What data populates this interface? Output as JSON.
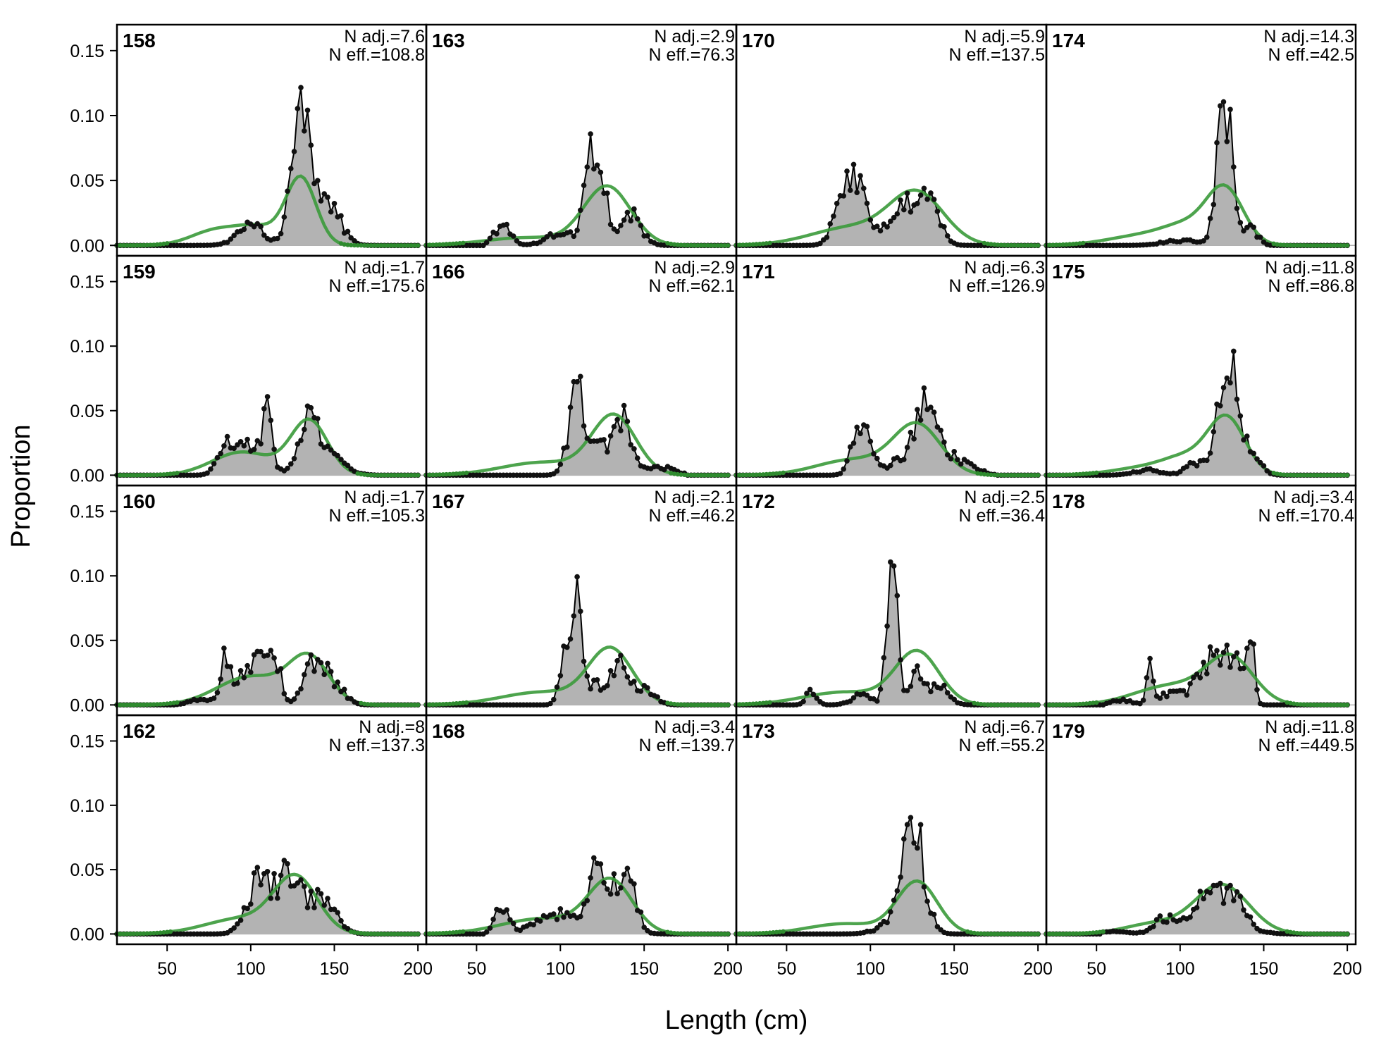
{
  "chart_data": {
    "type": "area",
    "xlabel": "Length (cm)",
    "ylabel": "Proportion",
    "xlim": [
      20,
      205
    ],
    "ylim": [
      -0.008,
      0.17
    ],
    "x_ticks": [
      "50",
      "100",
      "150",
      "200"
    ],
    "y_ticks": [
      "0.00",
      "0.05",
      "0.10",
      "0.15"
    ],
    "grid": false,
    "colors": {
      "observed_fill": "#b3b3b3",
      "observed_line": "#000000",
      "expected_line": "#3a9a3a",
      "zero_line": "#b0b0b0"
    },
    "panels": [
      {
        "label": "158",
        "n_adj": "N adj.=7.6",
        "n_eff": "N eff.=108.8",
        "seed": 158,
        "observed_peaks": [
          [
            127,
            0.058,
            4
          ],
          [
            132,
            0.05,
            2.5
          ],
          [
            131,
            0.03,
            6
          ],
          [
            140,
            0.03,
            6
          ],
          [
            150,
            0.02,
            6
          ],
          [
            100,
            0.015,
            8
          ]
        ],
        "expected": [
          [
            130,
            0.052,
            9
          ],
          [
            80,
            0.012,
            15
          ],
          [
            105,
            0.012,
            12
          ]
        ]
      },
      {
        "label": "163",
        "n_adj": "N adj.=2.9",
        "n_eff": "N eff.=76.3",
        "seed": 163,
        "observed_peaks": [
          [
            118,
            0.065,
            4
          ],
          [
            125,
            0.04,
            4
          ],
          [
            142,
            0.025,
            6
          ],
          [
            65,
            0.015,
            5
          ],
          [
            100,
            0.01,
            8
          ]
        ],
        "expected": [
          [
            128,
            0.045,
            14
          ],
          [
            80,
            0.006,
            25
          ]
        ]
      },
      {
        "label": "170",
        "n_adj": "N adj.=5.9",
        "n_eff": "N eff.=137.5",
        "seed": 170,
        "observed_peaks": [
          [
            85,
            0.04,
            6
          ],
          [
            94,
            0.035,
            4
          ],
          [
            125,
            0.03,
            8
          ],
          [
            135,
            0.03,
            6
          ],
          [
            110,
            0.015,
            6
          ]
        ],
        "expected": [
          [
            128,
            0.038,
            16
          ],
          [
            90,
            0.014,
            25
          ]
        ]
      },
      {
        "label": "174",
        "n_adj": "N adj.=14.3",
        "n_eff": "N eff.=42.5",
        "seed": 174,
        "observed_peaks": [
          [
            127,
            0.115,
            4.5
          ],
          [
            142,
            0.015,
            4
          ],
          [
            100,
            0.004,
            10
          ]
        ],
        "expected": [
          [
            127,
            0.042,
            11
          ],
          [
            80,
            0.008,
            22
          ],
          [
            105,
            0.012,
            14
          ]
        ]
      },
      {
        "label": "159",
        "n_adj": "N adj.=1.7",
        "n_eff": "N eff.=175.6",
        "seed": 159,
        "observed_peaks": [
          [
            135,
            0.045,
            6
          ],
          [
            110,
            0.04,
            3
          ],
          [
            85,
            0.02,
            5
          ],
          [
            100,
            0.022,
            8
          ],
          [
            150,
            0.012,
            8
          ]
        ],
        "expected": [
          [
            135,
            0.042,
            11
          ],
          [
            95,
            0.018,
            18
          ]
        ]
      },
      {
        "label": "166",
        "n_adj": "N adj.=2.9",
        "n_eff": "N eff.=62.1",
        "seed": 166,
        "observed_peaks": [
          [
            110,
            0.063,
            5
          ],
          [
            138,
            0.04,
            5
          ],
          [
            125,
            0.02,
            6
          ],
          [
            160,
            0.006,
            8
          ]
        ],
        "expected": [
          [
            132,
            0.045,
            13
          ],
          [
            90,
            0.01,
            25
          ]
        ]
      },
      {
        "label": "171",
        "n_adj": "N adj.=6.3",
        "n_eff": "N eff.=126.9",
        "seed": 171,
        "observed_peaks": [
          [
            95,
            0.045,
            5
          ],
          [
            130,
            0.05,
            5
          ],
          [
            140,
            0.025,
            6
          ],
          [
            155,
            0.01,
            8
          ],
          [
            115,
            0.01,
            6
          ]
        ],
        "expected": [
          [
            128,
            0.038,
            14
          ],
          [
            90,
            0.012,
            22
          ]
        ]
      },
      {
        "label": "175",
        "n_adj": "N adj.=11.8",
        "n_eff": "N eff.=86.8",
        "seed": 175,
        "observed_peaks": [
          [
            128,
            0.09,
            5
          ],
          [
            140,
            0.025,
            6
          ],
          [
            110,
            0.01,
            6
          ],
          [
            80,
            0.004,
            8
          ]
        ],
        "expected": [
          [
            128,
            0.043,
            11
          ],
          [
            80,
            0.006,
            20
          ],
          [
            105,
            0.012,
            14
          ]
        ]
      },
      {
        "label": "160",
        "n_adj": "N adj.=1.7",
        "n_eff": "N eff.=105.3",
        "seed": 160,
        "observed_peaks": [
          [
            85,
            0.035,
            3
          ],
          [
            105,
            0.035,
            5
          ],
          [
            115,
            0.035,
            3
          ],
          [
            138,
            0.035,
            6
          ],
          [
            150,
            0.015,
            6
          ],
          [
            95,
            0.02,
            5
          ],
          [
            70,
            0.005,
            6
          ]
        ],
        "expected": [
          [
            135,
            0.035,
            12
          ],
          [
            100,
            0.022,
            20
          ]
        ]
      },
      {
        "label": "167",
        "n_adj": "N adj.=2.1",
        "n_eff": "N eff.=46.2",
        "seed": 167,
        "observed_peaks": [
          [
            110,
            0.09,
            3
          ],
          [
            102,
            0.035,
            3
          ],
          [
            135,
            0.03,
            6
          ],
          [
            120,
            0.015,
            4
          ],
          [
            150,
            0.012,
            6
          ]
        ],
        "expected": [
          [
            130,
            0.042,
            13
          ],
          [
            90,
            0.01,
            25
          ]
        ]
      },
      {
        "label": "172",
        "n_adj": "N adj.=2.5",
        "n_eff": "N eff.=36.4",
        "seed": 172,
        "observed_peaks": [
          [
            113,
            0.125,
            3
          ],
          [
            127,
            0.025,
            4
          ],
          [
            140,
            0.015,
            6
          ],
          [
            65,
            0.012,
            3
          ],
          [
            95,
            0.008,
            6
          ]
        ],
        "expected": [
          [
            128,
            0.04,
            13
          ],
          [
            85,
            0.01,
            25
          ]
        ]
      },
      {
        "label": "178",
        "n_adj": "N adj.=3.4",
        "n_eff": "N eff.=170.4",
        "seed": 178,
        "observed_peaks": [
          [
            82,
            0.035,
            1.8
          ],
          [
            118,
            0.035,
            8
          ],
          [
            142,
            0.055,
            2.2
          ],
          [
            132,
            0.03,
            5
          ],
          [
            95,
            0.01,
            6
          ],
          [
            65,
            0.004,
            6
          ]
        ],
        "expected": [
          [
            130,
            0.035,
            14
          ],
          [
            95,
            0.015,
            22
          ]
        ]
      },
      {
        "label": "162",
        "n_adj": "N adj.=8",
        "n_eff": "N eff.=137.3",
        "seed": 162,
        "observed_peaks": [
          [
            105,
            0.04,
            7
          ],
          [
            125,
            0.035,
            9
          ],
          [
            145,
            0.025,
            7
          ],
          [
            120,
            0.015,
            3
          ]
        ],
        "expected": [
          [
            127,
            0.042,
            13
          ],
          [
            95,
            0.012,
            22
          ]
        ]
      },
      {
        "label": "168",
        "n_adj": "N adj.=3.4",
        "n_eff": "N eff.=139.7",
        "seed": 168,
        "observed_peaks": [
          [
            120,
            0.055,
            3
          ],
          [
            132,
            0.035,
            8
          ],
          [
            142,
            0.03,
            4
          ],
          [
            65,
            0.02,
            4
          ],
          [
            100,
            0.015,
            14
          ]
        ],
        "expected": [
          [
            130,
            0.04,
            13
          ],
          [
            90,
            0.012,
            25
          ]
        ]
      },
      {
        "label": "173",
        "n_adj": "N adj.=6.7",
        "n_eff": "N eff.=55.2",
        "seed": 173,
        "observed_peaks": [
          [
            125,
            0.09,
            6.5
          ],
          [
            110,
            0.005,
            8
          ]
        ],
        "expected": [
          [
            128,
            0.04,
            12
          ],
          [
            85,
            0.008,
            22
          ]
        ]
      },
      {
        "label": "179",
        "n_adj": "N adj.=11.8",
        "n_eff": "N eff.=449.5",
        "seed": 179,
        "observed_peaks": [
          [
            120,
            0.032,
            13
          ],
          [
            90,
            0.01,
            6
          ],
          [
            135,
            0.01,
            5
          ],
          [
            60,
            0.002,
            8
          ]
        ],
        "expected": [
          [
            125,
            0.038,
            16
          ],
          [
            85,
            0.008,
            18
          ]
        ]
      }
    ]
  }
}
